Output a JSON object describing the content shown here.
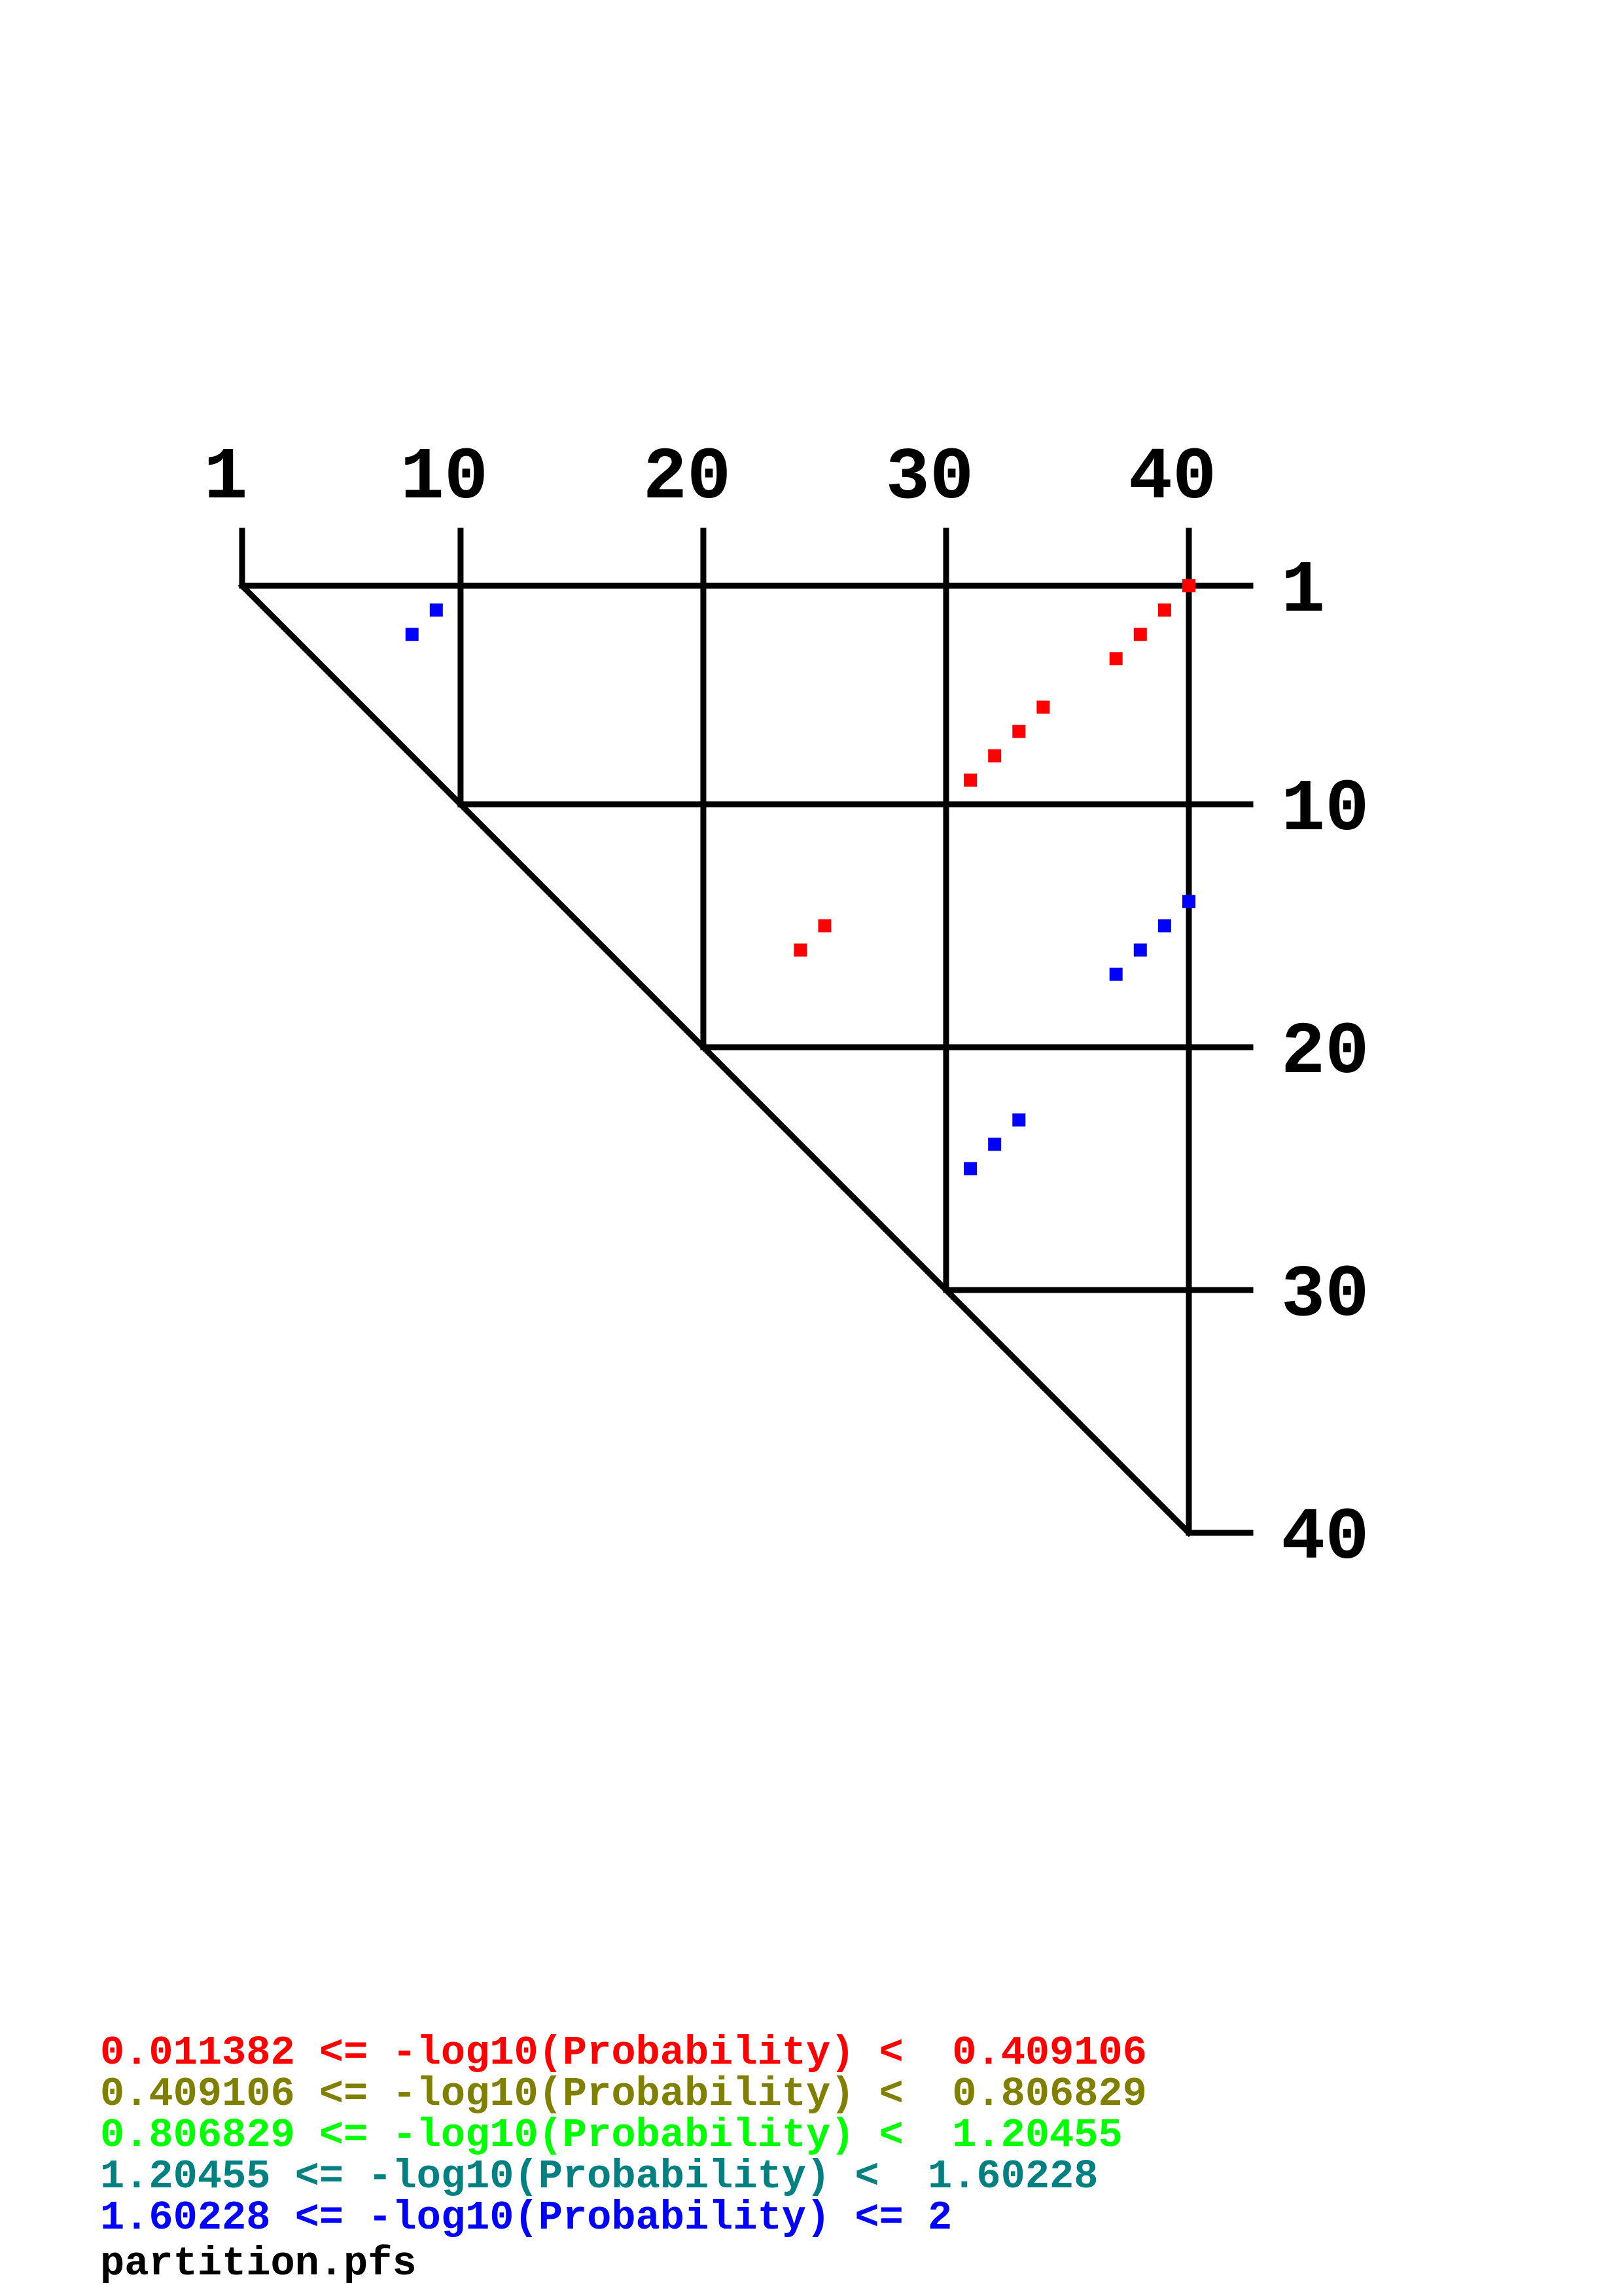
{
  "chart_data": {
    "type": "scatter",
    "subtype": "triangular dot plot (base pair probability)",
    "sequence_length": 40,
    "x_ticks": [
      "1",
      "10",
      "20",
      "30",
      "40"
    ],
    "y_ticks": [
      "1",
      "10",
      "20",
      "30",
      "40"
    ],
    "x_tick_values": [
      1,
      10,
      20,
      30,
      40
    ],
    "y_tick_values": [
      1,
      10,
      20,
      30,
      40
    ],
    "grid": true,
    "legend_placement": "bottom-left",
    "colors": {
      "red": "#ff0000",
      "olive": "#808000",
      "green": "#00ff00",
      "teal": "#008080",
      "blue": "#0000ff",
      "grid": "#000000"
    },
    "legend": [
      {
        "text": "0.011382 <= -log10(Probability) <  0.409106",
        "color": "#ff0000"
      },
      {
        "text": "0.409106 <= -log10(Probability) <  0.806829",
        "color": "#808000"
      },
      {
        "text": "0.806829 <= -log10(Probability) <  1.20455",
        "color": "#00ff00"
      },
      {
        "text": "1.20455 <= -log10(Probability) <  1.60228",
        "color": "#008080"
      },
      {
        "text": "1.60228 <= -log10(Probability) <= 2",
        "color": "#0000ff"
      }
    ],
    "filename": "partition.pfs",
    "points": [
      {
        "i": 1,
        "j": 40,
        "bin": 0
      },
      {
        "i": 2,
        "j": 39,
        "bin": 0
      },
      {
        "i": 3,
        "j": 38,
        "bin": 0
      },
      {
        "i": 4,
        "j": 37,
        "bin": 0
      },
      {
        "i": 6,
        "j": 34,
        "bin": 0
      },
      {
        "i": 7,
        "j": 33,
        "bin": 0
      },
      {
        "i": 8,
        "j": 32,
        "bin": 0
      },
      {
        "i": 9,
        "j": 31,
        "bin": 0
      },
      {
        "i": 15,
        "j": 25,
        "bin": 0
      },
      {
        "i": 16,
        "j": 24,
        "bin": 0
      },
      {
        "i": 2,
        "j": 9,
        "bin": 4
      },
      {
        "i": 3,
        "j": 8,
        "bin": 4
      },
      {
        "i": 14,
        "j": 40,
        "bin": 4
      },
      {
        "i": 15,
        "j": 39,
        "bin": 4
      },
      {
        "i": 16,
        "j": 38,
        "bin": 4
      },
      {
        "i": 17,
        "j": 37,
        "bin": 4
      },
      {
        "i": 23,
        "j": 33,
        "bin": 4
      },
      {
        "i": 24,
        "j": 32,
        "bin": 4
      },
      {
        "i": 25,
        "j": 31,
        "bin": 4
      }
    ]
  }
}
